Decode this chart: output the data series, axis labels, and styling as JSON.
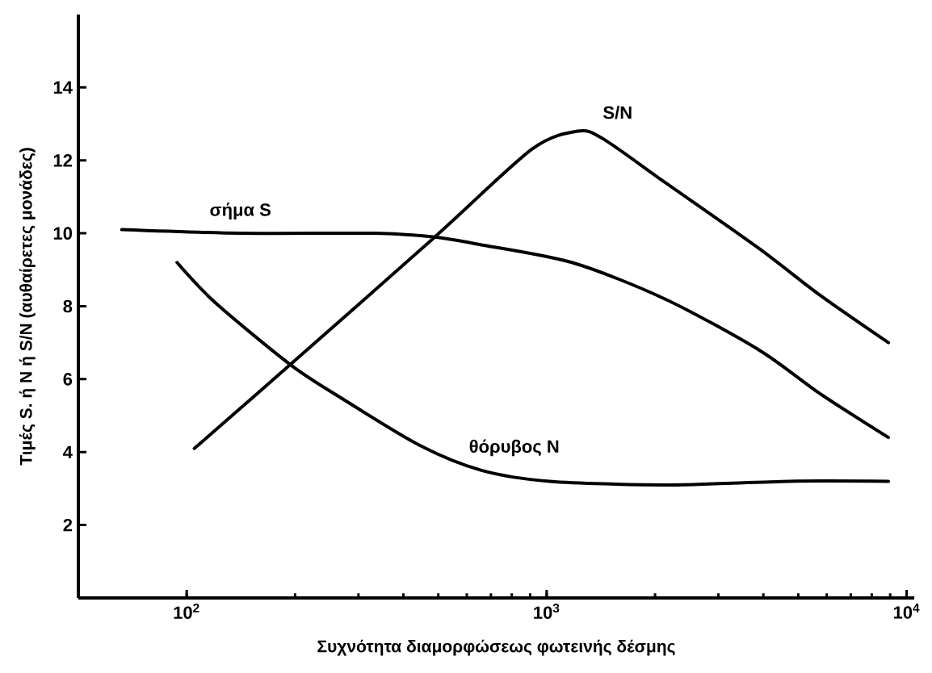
{
  "chart_data": {
    "type": "line",
    "xlabel": "Συχνότητα διαμορφώσεως φωτεινής δέσμης",
    "ylabel": "Τιμές S. ή N ή S/N (αυθαίρετες μονάδες)",
    "log": "x",
    "xlim": [
      50,
      10500
    ],
    "ylim": [
      0,
      16
    ],
    "xticks": [
      {
        "value": 100,
        "label": "10$^{2}$"
      },
      {
        "value": 1000,
        "label": "10$^{3}$"
      },
      {
        "value": 10000,
        "label": "10$^{4}$"
      }
    ],
    "yticks": [
      2,
      4,
      6,
      8,
      10,
      12,
      14
    ],
    "grid": false,
    "marker": "none",
    "line_style": "solid",
    "series": [
      {
        "name": "σήμα S",
        "color": "#000000",
        "x": [
          66,
          141,
          334,
          489,
          646,
          1175,
          2130,
          3890,
          5750,
          8900
        ],
        "values": [
          10.1,
          10.0,
          10.0,
          9.9,
          9.7,
          9.2,
          8.2,
          6.8,
          5.6,
          4.4
        ]
      },
      {
        "name": "θόρυβος N",
        "color": "#000000",
        "x": [
          94,
          120,
          194,
          267,
          441,
          659,
          1020,
          2130,
          4720,
          8900
        ],
        "values": [
          9.2,
          8.1,
          6.4,
          5.5,
          4.2,
          3.5,
          3.2,
          3.1,
          3.2,
          3.2
        ]
      },
      {
        "name": "S/N",
        "color": "#000000",
        "x": [
          105,
          194,
          489,
          908,
          1220,
          1430,
          2130,
          3870,
          5750,
          8900
        ],
        "values": [
          4.1,
          6.4,
          9.9,
          12.3,
          12.8,
          12.6,
          11.4,
          9.6,
          8.3,
          7.0
        ]
      }
    ]
  }
}
